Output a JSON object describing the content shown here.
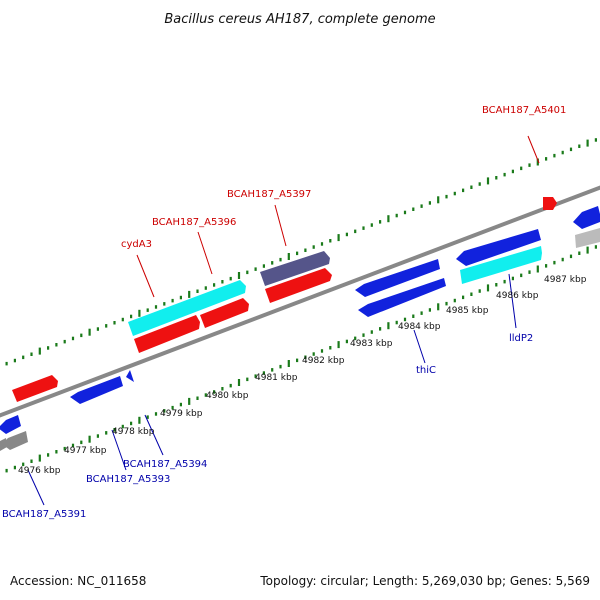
{
  "title": "Bacillus cereus AH187, complete genome",
  "footer": {
    "accession": "Accession: NC_011658",
    "summary": "Topology: circular; Length: 5,269,030 bp; Genes: 5,569"
  },
  "colors": {
    "forward_gene": "#ee1111",
    "reverse_gene": "#1122dd",
    "rna_gene": "#11eeee",
    "other_gene": "#55558a",
    "pseudo_gene": "#888888",
    "backbone": "#888888",
    "tick": "#1a7a1a",
    "forward_label": "#cc0000",
    "reverse_label": "#0000aa"
  },
  "scale_ticks": [
    {
      "label": "4976 kbp"
    },
    {
      "label": "4977 kbp"
    },
    {
      "label": "4978 kbp"
    },
    {
      "label": "4979 kbp"
    },
    {
      "label": "4980 kbp"
    },
    {
      "label": "4981 kbp"
    },
    {
      "label": "4982 kbp"
    },
    {
      "label": "4983 kbp"
    },
    {
      "label": "4984 kbp"
    },
    {
      "label": "4985 kbp"
    },
    {
      "label": "4986 kbp"
    },
    {
      "label": "4987 kbp"
    }
  ],
  "gene_labels": [
    {
      "name": "BCAH187_A5401",
      "strand": "forward"
    },
    {
      "name": "BCAH187_A5397",
      "strand": "forward"
    },
    {
      "name": "BCAH187_A5396",
      "strand": "forward"
    },
    {
      "name": "cydA3",
      "strand": "forward"
    },
    {
      "name": "lldP2",
      "strand": "reverse"
    },
    {
      "name": "thiC",
      "strand": "reverse"
    },
    {
      "name": "BCAH187_A5394",
      "strand": "reverse"
    },
    {
      "name": "BCAH187_A5393",
      "strand": "reverse"
    },
    {
      "name": "BCAH187_A5391",
      "strand": "reverse"
    }
  ]
}
